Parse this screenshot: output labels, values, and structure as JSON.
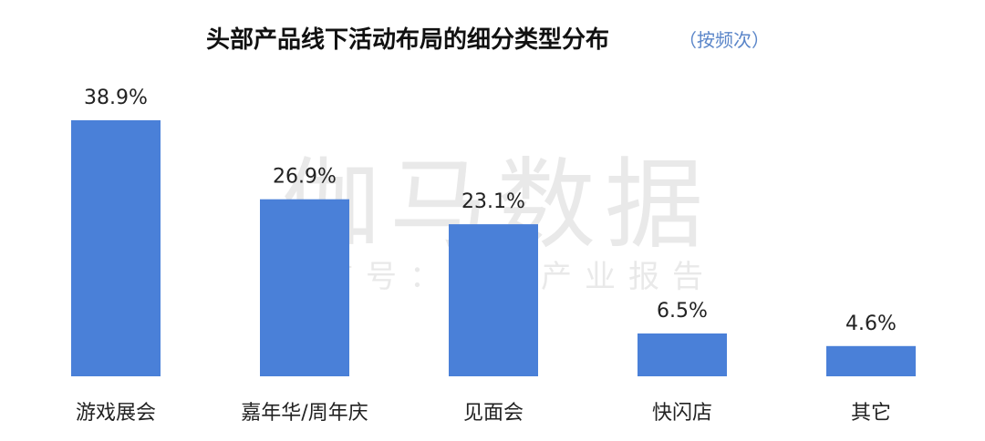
{
  "watermark": {
    "brand": "伽马数据",
    "subtitle": "微信号：游戏产业报告"
  },
  "chart_data": {
    "type": "bar",
    "title": "头部产品线下活动布局的细分类型分布",
    "subtitle": "（按频次）",
    "categories": [
      "游戏展会",
      "嘉年华/周年庆",
      "见面会",
      "快闪店",
      "其它"
    ],
    "values": [
      38.9,
      26.9,
      23.1,
      6.5,
      4.6
    ],
    "value_labels": [
      "38.9%",
      "26.9%",
      "23.1%",
      "6.5%",
      "4.6%"
    ],
    "unit": "%",
    "ylim": [
      0,
      38.9
    ],
    "grid": false,
    "legend": "none",
    "bar_color": "#4a80d8"
  }
}
